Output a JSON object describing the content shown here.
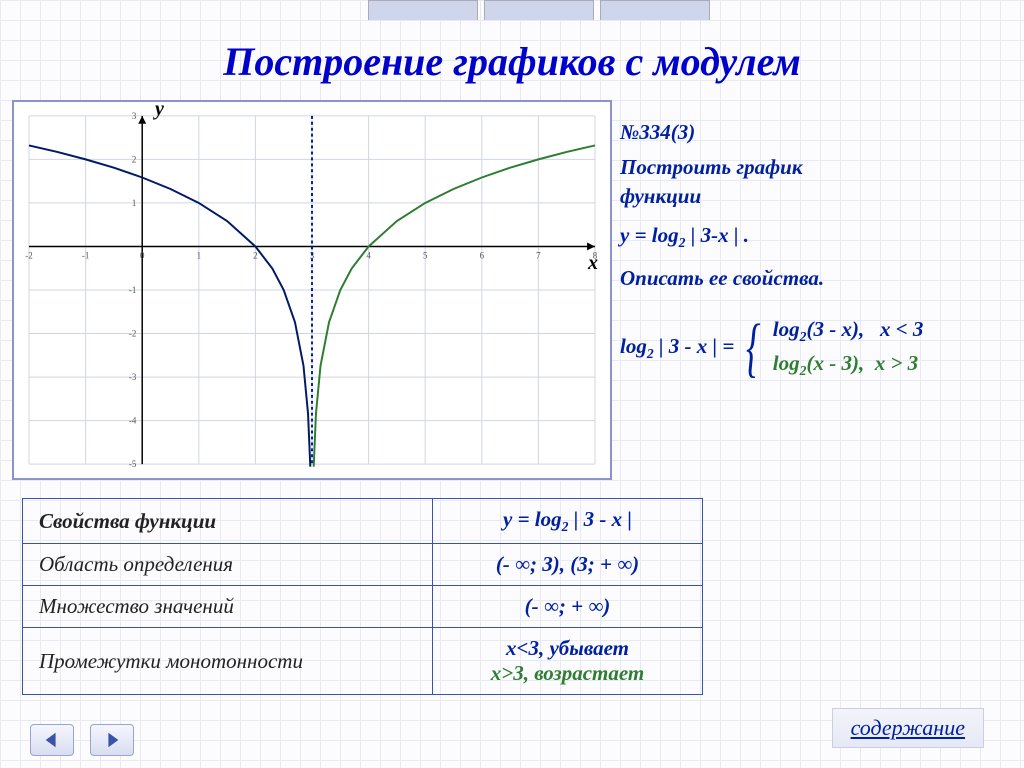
{
  "title": "Построение графиков с модулем",
  "axis": {
    "x_label": "x",
    "y_label": "y"
  },
  "chart": {
    "type": "line",
    "background_color": "#ffffff",
    "grid_color": "#d0d4e6",
    "axis_color": "#000000",
    "tick_font_size": 9,
    "xlim": [
      -2,
      8
    ],
    "ylim": [
      -5,
      3
    ],
    "xtick_step": 1,
    "ytick_step": 1,
    "x_axis_y": 0,
    "y_axis_x": 0,
    "asymptote": {
      "x": 3,
      "color": "#0020a0",
      "dash": "3,3",
      "width": 2
    },
    "series": [
      {
        "name": "log2(3-x)",
        "color": "#001a66",
        "width": 2,
        "points": [
          [
            -2,
            2.32
          ],
          [
            -1.5,
            2.17
          ],
          [
            -1,
            2.0
          ],
          [
            -0.5,
            1.81
          ],
          [
            0,
            1.585
          ],
          [
            0.5,
            1.32
          ],
          [
            1,
            1.0
          ],
          [
            1.5,
            0.585
          ],
          [
            2,
            0.0
          ],
          [
            2.3,
            -0.51
          ],
          [
            2.5,
            -1.0
          ],
          [
            2.7,
            -1.74
          ],
          [
            2.85,
            -2.74
          ],
          [
            2.93,
            -3.84
          ],
          [
            2.97,
            -5.06
          ]
        ]
      },
      {
        "name": "log2(x-3)",
        "color": "#2e7d32",
        "width": 2,
        "points": [
          [
            3.03,
            -5.06
          ],
          [
            3.07,
            -3.84
          ],
          [
            3.15,
            -2.74
          ],
          [
            3.3,
            -1.74
          ],
          [
            3.5,
            -1.0
          ],
          [
            3.7,
            -0.51
          ],
          [
            4,
            0.0
          ],
          [
            4.5,
            0.585
          ],
          [
            5,
            1.0
          ],
          [
            5.5,
            1.32
          ],
          [
            6,
            1.585
          ],
          [
            6.5,
            1.81
          ],
          [
            7,
            2.0
          ],
          [
            7.5,
            2.17
          ],
          [
            8,
            2.32
          ]
        ]
      }
    ]
  },
  "right": {
    "problem_number": "№334(3)",
    "task_line1": "Построить график",
    "task_line2": "функции",
    "formula": "y = log₂ | 3-x | .",
    "describe": "Описать ее свойства.",
    "piecewise_lhs": "log₂ | 3 - x | =",
    "case1": "log₂(3 - x),   x < 3",
    "case2": "log₂(x - 3),  x > 3"
  },
  "table": {
    "header_left": "Свойства функции",
    "header_right": "y = log₂ | 3 - x |",
    "rows": [
      {
        "label": "Область определения",
        "value": "(- ∞; 3), (3; + ∞)"
      },
      {
        "label": "Множество значений",
        "value": "(- ∞; + ∞)"
      },
      {
        "label": "Промежутки монотонности",
        "value_line1": "x<3, убывает",
        "value_line2": "x>3, возрастает"
      }
    ]
  },
  "contents_link": "содержание",
  "nav": {
    "prev_icon": "triangle-left",
    "next_icon": "triangle-right"
  },
  "colors": {
    "accent": "#0020a0",
    "green": "#2e7d32",
    "border": "#8a94c8"
  }
}
